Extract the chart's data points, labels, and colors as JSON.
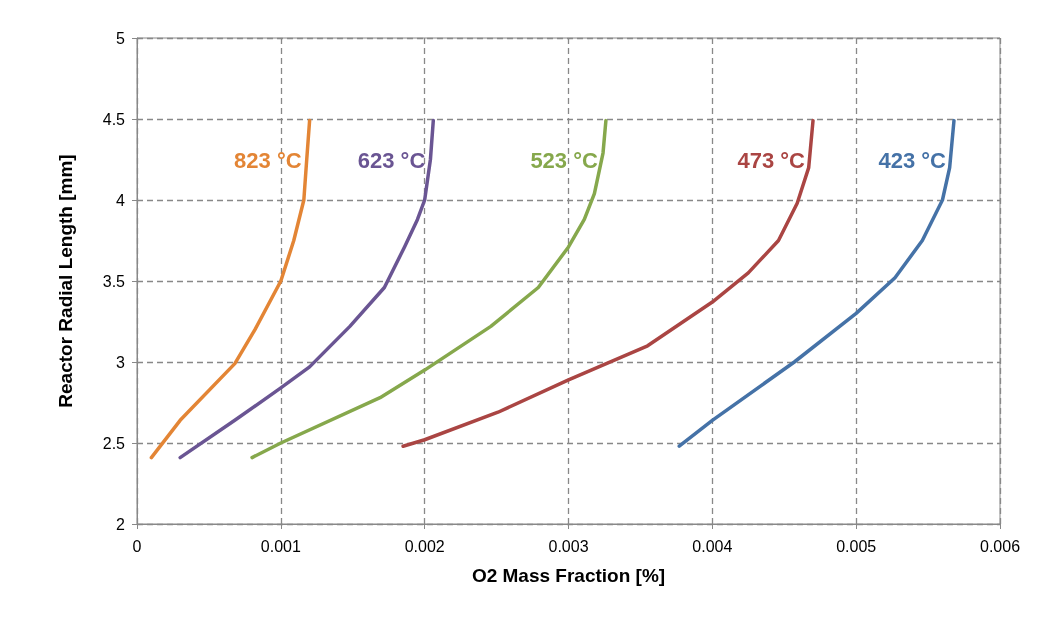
{
  "chart_data": {
    "type": "line",
    "xlabel": "O2 Mass Fraction [%]",
    "ylabel": "Reactor Radial Length [mm]",
    "xlim": [
      0,
      0.006
    ],
    "xticks": [
      0,
      0.001,
      0.002,
      0.003,
      0.004,
      0.005,
      0.006
    ],
    "ylim": [
      2,
      5
    ],
    "yticks": [
      2,
      2.5,
      3,
      3.5,
      4,
      4.5,
      5
    ],
    "grid": true,
    "legend": false,
    "marker": "none",
    "line_style": "solid",
    "series": [
      {
        "name": "823 °C",
        "color": "#e38535",
        "x": [
          0.0001,
          0.0003,
          0.00068,
          0.00082,
          0.001,
          0.00109,
          0.00116,
          0.00118,
          0.0012
        ],
        "values": [
          2.41,
          2.64,
          2.99,
          3.2,
          3.5,
          3.75,
          4.0,
          4.25,
          4.49
        ]
      },
      {
        "name": "623 °C",
        "color": "#6a5593",
        "x": [
          0.0003,
          0.00068,
          0.001,
          0.0012,
          0.00148,
          0.00172,
          0.00186,
          0.00195,
          0.002,
          0.00204,
          0.00206
        ],
        "values": [
          2.41,
          2.64,
          2.84,
          2.97,
          3.22,
          3.46,
          3.71,
          3.88,
          4.0,
          4.25,
          4.49
        ]
      },
      {
        "name": "523 °C",
        "color": "#86a84c",
        "x": [
          0.0008,
          0.001,
          0.00169,
          0.002,
          0.00246,
          0.00279,
          0.003,
          0.00311,
          0.00318,
          0.00324,
          0.00326
        ],
        "values": [
          2.41,
          2.5,
          2.78,
          2.95,
          3.22,
          3.46,
          3.71,
          3.88,
          4.04,
          4.29,
          4.49
        ]
      },
      {
        "name": "473 °C",
        "color": "#aa4543",
        "x": [
          0.00185,
          0.002,
          0.00251,
          0.003,
          0.00355,
          0.004,
          0.00425,
          0.00446,
          0.00459,
          0.00467,
          0.0047
        ],
        "values": [
          2.48,
          2.52,
          2.69,
          2.89,
          3.1,
          3.37,
          3.55,
          3.75,
          3.98,
          4.2,
          4.49
        ]
      },
      {
        "name": "423 °C",
        "color": "#4572a7",
        "x": [
          0.00377,
          0.004,
          0.00457,
          0.005,
          0.00527,
          0.00546,
          0.0056,
          0.00565,
          0.00568
        ],
        "values": [
          2.48,
          2.64,
          3.0,
          3.3,
          3.52,
          3.75,
          4.0,
          4.2,
          4.49
        ]
      }
    ]
  }
}
